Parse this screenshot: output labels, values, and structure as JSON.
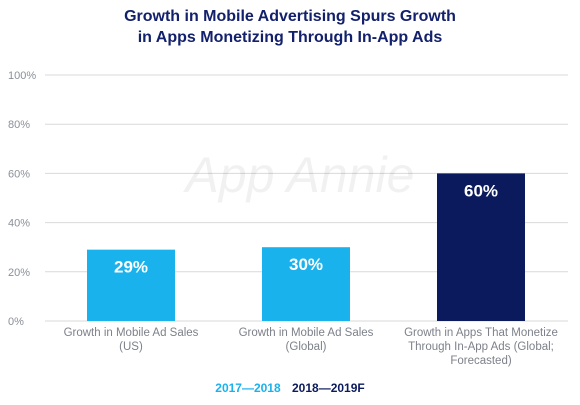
{
  "title_line1": "Growth in Mobile Advertising Spurs Growth",
  "title_line2": "in Apps Monetizing Through In-App Ads",
  "watermark": "App Annie",
  "colors": {
    "series_2017_2018": "#1ab2ec",
    "series_2018_2019F": "#0b1a5c",
    "title": "#13206b",
    "tick_label": "#8a8f99",
    "category_label": "#7d818a",
    "grid": "#d9d9d9"
  },
  "legend": [
    {
      "label": "2017—2018",
      "color": "#1ab2ec"
    },
    {
      "label": "2018—2019F",
      "color": "#0b1a5c"
    }
  ],
  "chart_data": {
    "type": "bar",
    "title": "Growth in Mobile Advertising Spurs Growth in Apps Monetizing Through In-App Ads",
    "ylim": [
      0,
      100
    ],
    "yticks": [
      "0%",
      "20%",
      "40%",
      "60%",
      "80%",
      "100%"
    ],
    "ytick_values": [
      0,
      20,
      40,
      60,
      80,
      100
    ],
    "grid": true,
    "legend_position": "bottom",
    "categories": [
      [
        "Growth in Mobile Ad Sales",
        "(US)"
      ],
      [
        "Growth in Mobile Ad Sales",
        "(Global)"
      ],
      [
        "Growth in Apps That Monetize",
        "Through In-App Ads (Global;",
        "Forecasted)"
      ]
    ],
    "values": [
      29,
      30,
      60
    ],
    "data_labels": [
      "29%",
      "30%",
      "60%"
    ],
    "bar_series": [
      "2017—2018",
      "2017—2018",
      "2018—2019F"
    ]
  }
}
